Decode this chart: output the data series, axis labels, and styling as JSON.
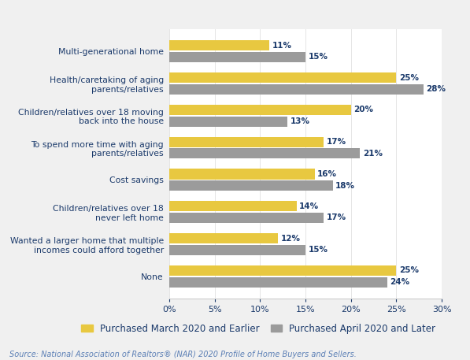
{
  "categories": [
    "Multi-generational home",
    "Health/caretaking of aging\nparents/relatives",
    "Children/relatives over 18 moving\nback into the house",
    "To spend more time with aging\nparents/relatives",
    "Cost savings",
    "Children/relatives over 18\nnever left home",
    "Wanted a larger home that multiple\nincomes could afford together",
    "None"
  ],
  "pre_pandemic": [
    11,
    25,
    20,
    17,
    16,
    14,
    12,
    25
  ],
  "post_pandemic": [
    15,
    28,
    13,
    21,
    18,
    17,
    15,
    24
  ],
  "pre_color": "#E8C840",
  "post_color": "#9B9B9B",
  "label_color": "#1B3A6B",
  "background_color": "#F0F0F0",
  "chart_bg": "#FFFFFF",
  "xlim": [
    0,
    30
  ],
  "xticks": [
    0,
    5,
    10,
    15,
    20,
    25,
    30
  ],
  "xtick_labels": [
    "0%",
    "5%",
    "10%",
    "15%",
    "20%",
    "25%",
    "30%"
  ],
  "legend_pre": "Purchased March 2020 and Earlier",
  "legend_post": "Purchased April 2020 and Later",
  "source_text": "Source: National Association of Realtors® (NAR) 2020 Profile of Home Buyers and Sellers.",
  "bar_height": 0.32,
  "value_fontsize": 7.5,
  "label_fontsize": 7.8,
  "tick_fontsize": 8.0,
  "legend_fontsize": 8.5
}
